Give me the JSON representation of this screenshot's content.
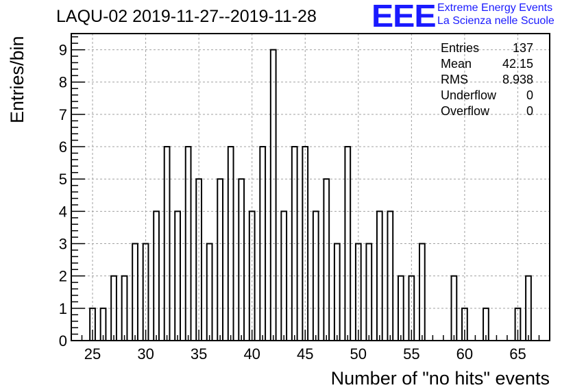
{
  "header": {
    "title": "LAQU-02 2019-11-27--2019-11-28"
  },
  "logo": {
    "mark": "EEE",
    "line1": "Extreme Energy Events",
    "line2": "La Scienza nelle Scuole",
    "color": "#1a1aff"
  },
  "stats": {
    "entries_label": "Entries",
    "entries_value": "137",
    "mean_label": "Mean",
    "mean_value": "42.15",
    "rms_label": "RMS",
    "rms_value": "8.938",
    "underflow_label": "Underflow",
    "underflow_value": "0",
    "overflow_label": "Overflow",
    "overflow_value": "0"
  },
  "chart_data": {
    "type": "bar",
    "title": "LAQU-02 2019-11-27--2019-11-28",
    "xlabel": "Number of \"no hits\" events",
    "ylabel": "Entries/bin",
    "xlim": [
      23,
      68
    ],
    "ylim": [
      0,
      9.5
    ],
    "grid": true,
    "bin_width": 0.5,
    "x_ticks": [
      25,
      30,
      35,
      40,
      45,
      50,
      55,
      60,
      65
    ],
    "y_ticks": [
      0,
      1,
      2,
      3,
      4,
      5,
      6,
      7,
      8,
      9
    ],
    "bins": [
      {
        "x": 25,
        "count": 1
      },
      {
        "x": 26,
        "count": 1
      },
      {
        "x": 27,
        "count": 2
      },
      {
        "x": 28,
        "count": 2
      },
      {
        "x": 29,
        "count": 3
      },
      {
        "x": 30,
        "count": 3
      },
      {
        "x": 31,
        "count": 4
      },
      {
        "x": 32,
        "count": 6
      },
      {
        "x": 33,
        "count": 4
      },
      {
        "x": 34,
        "count": 6
      },
      {
        "x": 35,
        "count": 5
      },
      {
        "x": 36,
        "count": 3
      },
      {
        "x": 37,
        "count": 5
      },
      {
        "x": 38,
        "count": 6
      },
      {
        "x": 39,
        "count": 5
      },
      {
        "x": 40,
        "count": 4
      },
      {
        "x": 41,
        "count": 6
      },
      {
        "x": 42,
        "count": 9
      },
      {
        "x": 43,
        "count": 4
      },
      {
        "x": 44,
        "count": 6
      },
      {
        "x": 45,
        "count": 6
      },
      {
        "x": 46,
        "count": 4
      },
      {
        "x": 47,
        "count": 5
      },
      {
        "x": 48,
        "count": 3
      },
      {
        "x": 49,
        "count": 6
      },
      {
        "x": 50,
        "count": 3
      },
      {
        "x": 51,
        "count": 3
      },
      {
        "x": 52,
        "count": 4
      },
      {
        "x": 53,
        "count": 4
      },
      {
        "x": 54,
        "count": 2
      },
      {
        "x": 55,
        "count": 2
      },
      {
        "x": 56,
        "count": 3
      },
      {
        "x": 59,
        "count": 2
      },
      {
        "x": 60,
        "count": 1
      },
      {
        "x": 62,
        "count": 1
      },
      {
        "x": 65,
        "count": 1
      },
      {
        "x": 66,
        "count": 2
      }
    ]
  }
}
